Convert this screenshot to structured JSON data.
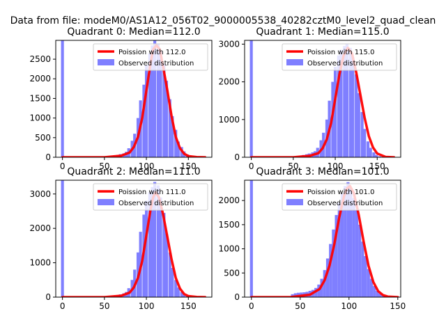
{
  "figure": {
    "suptitle": "Data from file: modeM0/AS1A12_056T02_9000005538_40282cztM0_level2_quad_clean"
  },
  "colors": {
    "observed": "#7f7fff",
    "poisson": "#ff0000"
  },
  "chart_data": [
    {
      "type": "bar",
      "title": "Quadrant 0: Median=112.0",
      "xlim": [
        -8,
        178
      ],
      "ylim": [
        0,
        2980
      ],
      "xticks": [
        0,
        50,
        100,
        150
      ],
      "yticks": [
        0,
        500,
        1000,
        1500,
        2000,
        2500
      ],
      "legend": [
        "Poission with 112.0",
        "Observed distribution"
      ],
      "histogram": {
        "bin_width": 3.45,
        "bins": [
          [
            0,
            2980
          ],
          [
            55,
            15
          ],
          [
            59,
            30
          ],
          [
            62,
            45
          ],
          [
            66,
            60
          ],
          [
            69,
            80
          ],
          [
            73,
            100
          ],
          [
            76,
            140
          ],
          [
            79,
            230
          ],
          [
            83,
            420
          ],
          [
            86,
            600
          ],
          [
            90,
            1000
          ],
          [
            93,
            1450
          ],
          [
            97,
            1850
          ],
          [
            100,
            2350
          ],
          [
            104,
            2650
          ],
          [
            107,
            2850
          ],
          [
            110,
            2980
          ],
          [
            114,
            2900
          ],
          [
            117,
            2700
          ],
          [
            121,
            2380
          ],
          [
            124,
            1950
          ],
          [
            128,
            1480
          ],
          [
            131,
            1050
          ],
          [
            135,
            700
          ],
          [
            138,
            400
          ],
          [
            142,
            260
          ],
          [
            145,
            150
          ],
          [
            149,
            70
          ],
          [
            152,
            35
          ],
          [
            155,
            15
          ]
        ]
      },
      "poisson": {
        "x": [
          0,
          50,
          70,
          80,
          85,
          90,
          95,
          100,
          105,
          108,
          112,
          116,
          120,
          125,
          130,
          135,
          140,
          145,
          150,
          160,
          170
        ],
        "y": [
          0,
          0,
          40,
          120,
          260,
          520,
          1000,
          1700,
          2400,
          2750,
          2850,
          2750,
          2300,
          1700,
          1050,
          520,
          230,
          90,
          30,
          5,
          0
        ]
      }
    },
    {
      "type": "bar",
      "title": "Quadrant 1: Median=115.0",
      "xlim": [
        -8,
        178
      ],
      "ylim": [
        0,
        3100
      ],
      "xticks": [
        0,
        50,
        100,
        150
      ],
      "yticks": [
        0,
        1000,
        2000,
        3000
      ],
      "legend": [
        "Poission with 115.0",
        "Observed distribution"
      ],
      "histogram": {
        "bin_width": 3.5,
        "bins": [
          [
            0,
            3100
          ],
          [
            55,
            20
          ],
          [
            59,
            40
          ],
          [
            62,
            60
          ],
          [
            66,
            80
          ],
          [
            69,
            100
          ],
          [
            73,
            130
          ],
          [
            76,
            160
          ],
          [
            79,
            250
          ],
          [
            83,
            450
          ],
          [
            86,
            650
          ],
          [
            90,
            1000
          ],
          [
            93,
            1500
          ],
          [
            97,
            2000
          ],
          [
            100,
            2400
          ],
          [
            104,
            2700
          ],
          [
            107,
            2850
          ],
          [
            111,
            2950
          ],
          [
            114,
            3000
          ],
          [
            118,
            2900
          ],
          [
            121,
            2650
          ],
          [
            125,
            2200
          ],
          [
            128,
            1700
          ],
          [
            132,
            1200
          ],
          [
            135,
            750
          ],
          [
            139,
            420
          ],
          [
            142,
            250
          ],
          [
            146,
            130
          ],
          [
            149,
            60
          ],
          [
            153,
            25
          ]
        ]
      },
      "poisson": {
        "x": [
          0,
          50,
          70,
          80,
          85,
          90,
          95,
          100,
          105,
          110,
          115,
          120,
          125,
          130,
          135,
          140,
          145,
          150,
          160,
          170
        ],
        "y": [
          0,
          0,
          40,
          110,
          240,
          480,
          900,
          1550,
          2200,
          2700,
          2900,
          2750,
          2250,
          1650,
          1050,
          560,
          260,
          100,
          10,
          0
        ]
      }
    },
    {
      "type": "bar",
      "title": "Quadrant 2: Median=111.0",
      "xlim": [
        -8,
        178
      ],
      "ylim": [
        0,
        3400
      ],
      "xticks": [
        0,
        50,
        100,
        150
      ],
      "yticks": [
        0,
        1000,
        2000,
        3000
      ],
      "legend": [
        "Poission with 111.0",
        "Observed distribution"
      ],
      "histogram": {
        "bin_width": 3.45,
        "bins": [
          [
            0,
            3400
          ],
          [
            55,
            15
          ],
          [
            59,
            30
          ],
          [
            62,
            45
          ],
          [
            66,
            60
          ],
          [
            69,
            80
          ],
          [
            73,
            110
          ],
          [
            76,
            150
          ],
          [
            79,
            260
          ],
          [
            83,
            500
          ],
          [
            86,
            800
          ],
          [
            90,
            1300
          ],
          [
            93,
            1900
          ],
          [
            97,
            2400
          ],
          [
            100,
            2800
          ],
          [
            104,
            3050
          ],
          [
            107,
            3200
          ],
          [
            110,
            3350
          ],
          [
            114,
            3250
          ],
          [
            117,
            2900
          ],
          [
            121,
            2450
          ],
          [
            124,
            1850
          ],
          [
            128,
            1300
          ],
          [
            131,
            850
          ],
          [
            135,
            500
          ],
          [
            138,
            280
          ],
          [
            142,
            150
          ],
          [
            145,
            70
          ],
          [
            149,
            30
          ],
          [
            152,
            15
          ]
        ]
      },
      "poisson": {
        "x": [
          0,
          50,
          70,
          80,
          85,
          90,
          95,
          100,
          105,
          108,
          111,
          115,
          120,
          125,
          130,
          135,
          140,
          145,
          150,
          160,
          170
        ],
        "y": [
          0,
          0,
          40,
          130,
          280,
          560,
          1050,
          1800,
          2550,
          2900,
          3050,
          2900,
          2400,
          1750,
          1100,
          560,
          250,
          90,
          30,
          5,
          0
        ]
      }
    },
    {
      "type": "bar",
      "title": "Quadrant 3: Median=101.0",
      "xlim": [
        -7,
        153
      ],
      "ylim": [
        0,
        2420
      ],
      "xticks": [
        0,
        50,
        100,
        150
      ],
      "yticks": [
        0,
        500,
        1000,
        1500,
        2000
      ],
      "legend": [
        "Poission with 101.0",
        "Observed distribution"
      ],
      "histogram": {
        "bin_width": 3.0,
        "bins": [
          [
            0,
            2420
          ],
          [
            42,
            60
          ],
          [
            45,
            80
          ],
          [
            48,
            90
          ],
          [
            51,
            95
          ],
          [
            54,
            100
          ],
          [
            57,
            110
          ],
          [
            60,
            130
          ],
          [
            63,
            150
          ],
          [
            66,
            190
          ],
          [
            69,
            260
          ],
          [
            72,
            380
          ],
          [
            75,
            560
          ],
          [
            78,
            800
          ],
          [
            81,
            1100
          ],
          [
            84,
            1400
          ],
          [
            87,
            1700
          ],
          [
            90,
            1950
          ],
          [
            93,
            2150
          ],
          [
            96,
            2300
          ],
          [
            99,
            2380
          ],
          [
            102,
            2250
          ],
          [
            105,
            2050
          ],
          [
            108,
            1800
          ],
          [
            111,
            1500
          ],
          [
            114,
            1150
          ],
          [
            117,
            850
          ],
          [
            120,
            580
          ],
          [
            123,
            380
          ],
          [
            126,
            230
          ],
          [
            129,
            130
          ],
          [
            132,
            70
          ],
          [
            135,
            30
          ],
          [
            138,
            15
          ]
        ]
      },
      "poisson": {
        "x": [
          0,
          40,
          60,
          70,
          75,
          80,
          85,
          90,
          95,
          98,
          101,
          105,
          110,
          115,
          120,
          125,
          130,
          135,
          140,
          150
        ],
        "y": [
          0,
          0,
          50,
          170,
          350,
          650,
          1100,
          1650,
          2100,
          2250,
          2300,
          2150,
          1700,
          1150,
          650,
          310,
          120,
          40,
          10,
          0
        ]
      }
    }
  ]
}
